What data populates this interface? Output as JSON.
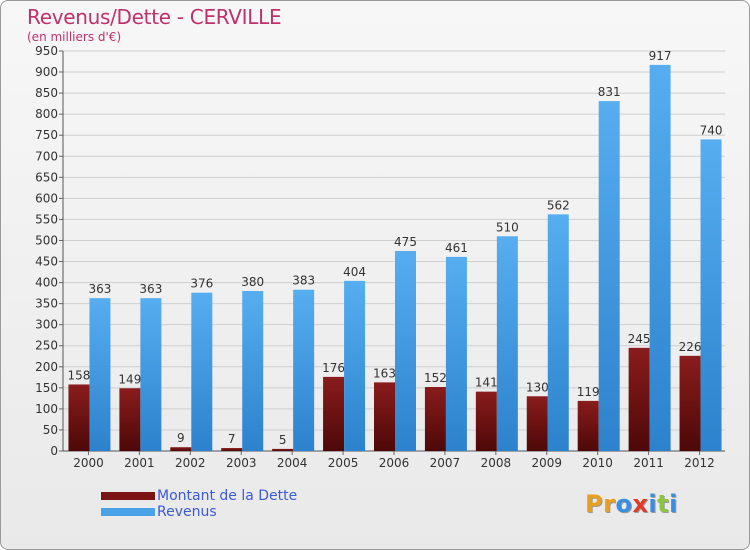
{
  "header": {
    "title": "Revenus/Dette - CERVILLE",
    "subtitle": "(en milliers d'€)"
  },
  "chart_data": {
    "type": "bar",
    "categories": [
      "2000",
      "2001",
      "2002",
      "2003",
      "2004",
      "2005",
      "2006",
      "2007",
      "2008",
      "2009",
      "2010",
      "2011",
      "2012"
    ],
    "series": [
      {
        "name": "Montant de la Dette",
        "color": "#7a1414",
        "values": [
          158,
          149,
          9,
          7,
          5,
          176,
          163,
          152,
          141,
          130,
          119,
          245,
          226
        ]
      },
      {
        "name": "Revenus",
        "color": "#4aa3e6",
        "values": [
          363,
          363,
          376,
          380,
          383,
          404,
          475,
          461,
          510,
          562,
          831,
          917,
          740
        ]
      }
    ],
    "ylim": [
      0,
      950
    ],
    "yticks": [
      0,
      50,
      100,
      150,
      200,
      250,
      300,
      350,
      400,
      450,
      500,
      550,
      600,
      650,
      700,
      750,
      800,
      850,
      900,
      950
    ],
    "grid": true,
    "legend_position": "bottom-left"
  },
  "legend": {
    "items": [
      {
        "label": "Montant de la Dette",
        "color": "#7a1414"
      },
      {
        "label": "Revenus",
        "color": "#4aa3e6"
      }
    ]
  },
  "logo": {
    "letters": [
      {
        "char": "P",
        "color": "#e8a020"
      },
      {
        "char": "r",
        "color": "#e8a020"
      },
      {
        "char": "o",
        "color": "#3a8ee0"
      },
      {
        "char": "x",
        "color": "#e03a2a"
      },
      {
        "char": "i",
        "color": "#3a8ee0"
      },
      {
        "char": "t",
        "color": "#8cc63f"
      },
      {
        "char": "i",
        "color": "#3a8ee0"
      }
    ]
  }
}
